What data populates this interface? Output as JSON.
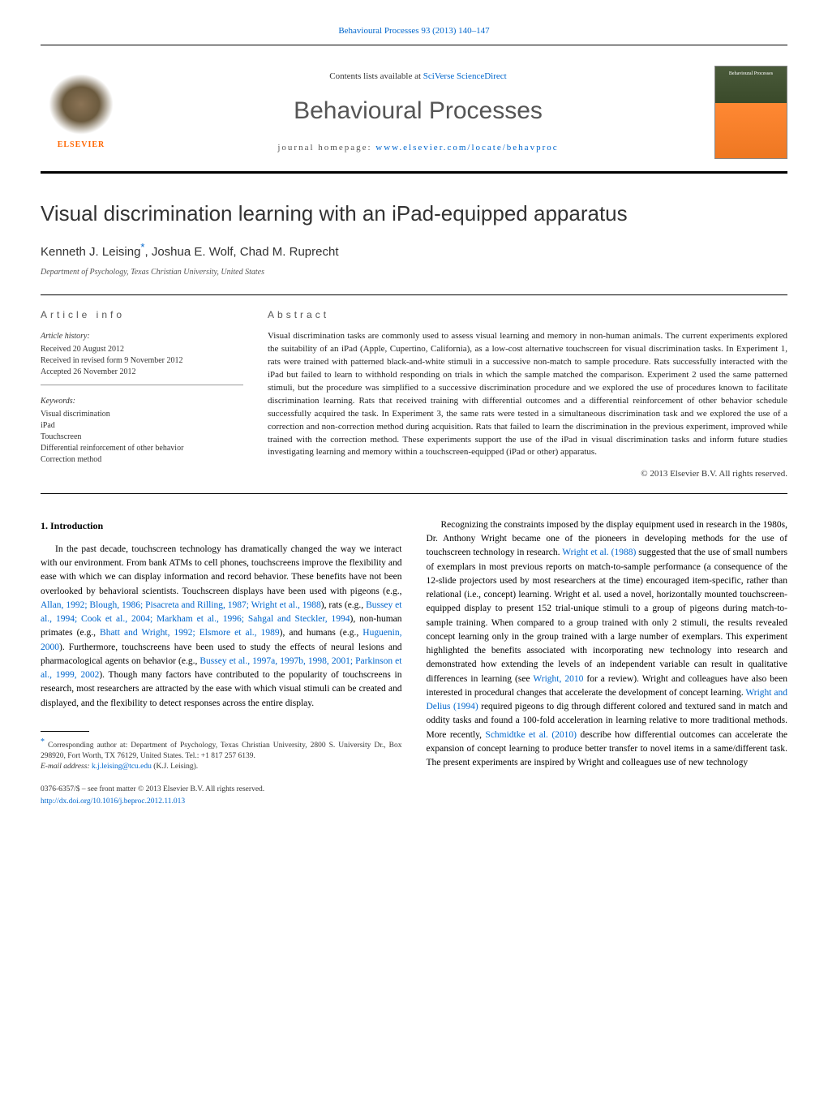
{
  "header": {
    "citation": "Behavioural Processes 93 (2013) 140–147",
    "contents_prefix": "Contents lists available at ",
    "contents_link": "SciVerse ScienceDirect",
    "journal_name": "Behavioural Processes",
    "homepage_prefix": "journal homepage: ",
    "homepage_link": "www.elsevier.com/locate/behavproc",
    "elsevier_name": "ELSEVIER",
    "cover_label": "Behavioural Processes"
  },
  "article": {
    "title": "Visual discrimination learning with an iPad-equipped apparatus",
    "authors": "Kenneth J. Leising*, Joshua E. Wolf, Chad M. Ruprecht",
    "author1": "Kenneth J. Leising",
    "author2": ", Joshua E. Wolf, Chad M. Ruprecht",
    "asterisk": "*",
    "affiliation": "Department of Psychology, Texas Christian University, United States"
  },
  "info": {
    "label": "ARTICLE INFO",
    "history_heading": "Article history:",
    "received": "Received 20 August 2012",
    "revised": "Received in revised form 9 November 2012",
    "accepted": "Accepted 26 November 2012",
    "keywords_heading": "Keywords:",
    "keywords": [
      "Visual discrimination",
      "iPad",
      "Touchscreen",
      "Differential reinforcement of other behavior",
      "Correction method"
    ]
  },
  "abstract": {
    "label": "ABSTRACT",
    "text": "Visual discrimination tasks are commonly used to assess visual learning and memory in non-human animals. The current experiments explored the suitability of an iPad (Apple, Cupertino, California), as a low-cost alternative touchscreen for visual discrimination tasks. In Experiment 1, rats were trained with patterned black-and-white stimuli in a successive non-match to sample procedure. Rats successfully interacted with the iPad but failed to learn to withhold responding on trials in which the sample matched the comparison. Experiment 2 used the same patterned stimuli, but the procedure was simplified to a successive discrimination procedure and we explored the use of procedures known to facilitate discrimination learning. Rats that received training with differential outcomes and a differential reinforcement of other behavior schedule successfully acquired the task. In Experiment 3, the same rats were tested in a simultaneous discrimination task and we explored the use of a correction and non-correction method during acquisition. Rats that failed to learn the discrimination in the previous experiment, improved while trained with the correction method. These experiments support the use of the iPad in visual discrimination tasks and inform future studies investigating learning and memory within a touchscreen-equipped (iPad or other) apparatus.",
    "copyright": "© 2013 Elsevier B.V. All rights reserved."
  },
  "body": {
    "intro_heading": "1. Introduction",
    "col1_p1a": "In the past decade, touchscreen technology has dramatically changed the way we interact with our environment. From bank ATMs to cell phones, touchscreens improve the flexibility and ease with which we can display information and record behavior. These benefits have not been overlooked by behavioral scientists. Touchscreen displays have been used with pigeons (e.g., ",
    "col1_c1": "Allan, 1992; Blough, 1986; Pisacreta and Rilling, 1987; Wright et al., 1988",
    "col1_p1b": "), rats (e.g., ",
    "col1_c2": "Bussey et al., 1994; Cook et al., 2004; Markham et al., 1996; Sahgal and Steckler, 1994",
    "col1_p1c": "), non-human primates (e.g., ",
    "col1_c3": "Bhatt and Wright, 1992; Elsmore et al., 1989",
    "col1_p1d": "), and humans (e.g., ",
    "col1_c4": "Huguenin, 2000",
    "col1_p1e": "). Furthermore, touchscreens have been used to study the effects of neural lesions and pharmacological agents on behavior (e.g., ",
    "col1_c5": "Bussey et al., 1997a, 1997b, 1998, 2001; Parkinson et al., 1999, 2002",
    "col1_p1f": "). Though many factors have contributed to the popularity of touchscreens in research, most researchers are attracted by the ease with which visual stimuli can be created and displayed, and the flexibility to detect responses across the entire display.",
    "col2_p1a": "Recognizing the constraints imposed by the display equipment used in research in the 1980s, Dr. Anthony Wright became one of the pioneers in developing methods for the use of touchscreen technology in research. ",
    "col2_c1": "Wright et al. (1988)",
    "col2_p1b": " suggested that the use of small numbers of exemplars in most previous reports on match-to-sample performance (a consequence of the 12-slide projectors used by most researchers at the time) encouraged item-specific, rather than relational (i.e., concept) learning. Wright et al. used a novel, horizontally mounted touchscreen-equipped display to present 152 trial-unique stimuli to a group of pigeons during match-to-sample training. When compared to a group trained with only 2 stimuli, the results revealed concept learning only in the group trained with a large number of exemplars. This experiment highlighted the benefits associated with incorporating new technology into research and demonstrated how extending the levels of an independent variable can result in qualitative differences in learning (see ",
    "col2_c2": "Wright, 2010",
    "col2_p1c": " for a review). Wright and colleagues have also been interested in procedural changes that accelerate the development of concept learning. ",
    "col2_c3": "Wright and Delius (1994)",
    "col2_p1d": " required pigeons to dig through different colored and textured sand in match and oddity tasks and found a 100-fold acceleration in learning relative to more traditional methods. More recently, ",
    "col2_c4": "Schmidtke et al. (2010)",
    "col2_p1e": " describe how differential outcomes can accelerate the expansion of concept learning to produce better transfer to novel items in a same/different task. The present experiments are inspired by Wright and colleagues use of new technology"
  },
  "footnote": {
    "corr_text": " Corresponding author at: Department of Psychology, Texas Christian University, 2800 S. University Dr., Box 298920, Fort Worth, TX 76129, United States. Tel.: +1 817 257 6139.",
    "email_label": "E-mail address: ",
    "email": "k.j.leising@tcu.edu",
    "email_suffix": " (K.J. Leising).",
    "doi_prefix": "0376-6357/$ – see front matter © 2013 Elsevier B.V. All rights reserved.",
    "doi_link": "http://dx.doi.org/10.1016/j.beproc.2012.11.013"
  },
  "colors": {
    "link": "#0066cc",
    "orange": "#ff6600",
    "text": "#333333"
  }
}
